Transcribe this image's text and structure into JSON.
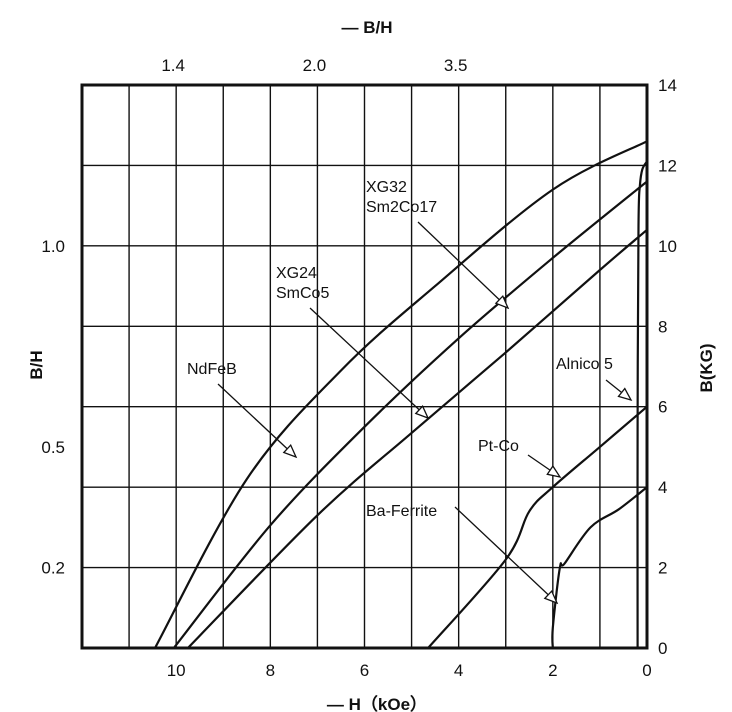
{
  "chart_data": {
    "type": "line",
    "x_axis": {
      "label": "— H（kOe）",
      "range": [
        12,
        0
      ],
      "ticks": [
        10,
        8,
        6,
        4,
        2,
        0
      ]
    },
    "y_axis_right": {
      "label": "B(KG)",
      "range": [
        0,
        14
      ],
      "ticks": [
        0,
        2,
        4,
        6,
        8,
        10,
        12,
        14
      ]
    },
    "y_axis_left": {
      "label": "B/H",
      "ticks": [
        {
          "label": "1.0",
          "y": 10
        },
        {
          "label": "0.5",
          "y": 5
        },
        {
          "label": "0.2",
          "y": 2
        }
      ]
    },
    "top_axis": {
      "label": "— B/H",
      "ticks": [
        {
          "label": "1.4",
          "x": 10
        },
        {
          "label": "2.0",
          "x": 7
        },
        {
          "label": "3.5",
          "x": 4
        }
      ]
    },
    "grid": true,
    "series": [
      {
        "name": "NdFeB",
        "x": [
          10.45,
          8.5,
          6.5,
          4.5,
          2.0,
          0.0
        ],
        "y": [
          0,
          4.2,
          6.9,
          9.0,
          11.4,
          12.6
        ]
      },
      {
        "name": "XG32 Sm2Co17",
        "x": [
          10.05,
          8.0,
          6.0,
          4.0,
          2.0,
          0.0
        ],
        "y": [
          0,
          3.05,
          5.5,
          7.7,
          9.7,
          11.6
        ]
      },
      {
        "name": "XG24 SmCo5",
        "x": [
          9.75,
          7.0,
          5.0,
          3.0,
          1.0,
          0.0
        ],
        "y": [
          0,
          3.3,
          5.35,
          7.35,
          9.4,
          10.4
        ]
      },
      {
        "name": "Pt-Co",
        "x": [
          4.65,
          3.0,
          2.5,
          2.0,
          1.0,
          0.0
        ],
        "y": [
          0,
          2.2,
          3.4,
          4.0,
          5.0,
          6.0
        ]
      },
      {
        "name": "Ba-Ferrite",
        "x": [
          2.0,
          2.0,
          1.85,
          1.75,
          1.2,
          0.6,
          0.0
        ],
        "y": [
          0,
          0.5,
          2.0,
          2.1,
          3.0,
          3.45,
          4.0
        ]
      },
      {
        "name": "Alnico 5",
        "x": [
          0.2,
          0.2,
          0.18,
          0.15,
          0.1,
          0.0
        ],
        "y": [
          0,
          5.5,
          10.5,
          11.5,
          11.9,
          12.1
        ]
      }
    ],
    "annotations": [
      {
        "lines": [
          "XG32",
          "Sm2Co17"
        ],
        "target": "XG32 Sm2Co17"
      },
      {
        "lines": [
          "XG24",
          "SmCo5"
        ],
        "target": "XG24 SmCo5"
      },
      {
        "lines": [
          "NdFeB"
        ],
        "target": "NdFeB"
      },
      {
        "lines": [
          "Alnico 5"
        ],
        "target": "Alnico 5"
      },
      {
        "lines": [
          "Pt-Co"
        ],
        "target": "Pt-Co"
      },
      {
        "lines": [
          "Ba-Ferrite"
        ],
        "target": "Ba-Ferrite"
      }
    ]
  }
}
